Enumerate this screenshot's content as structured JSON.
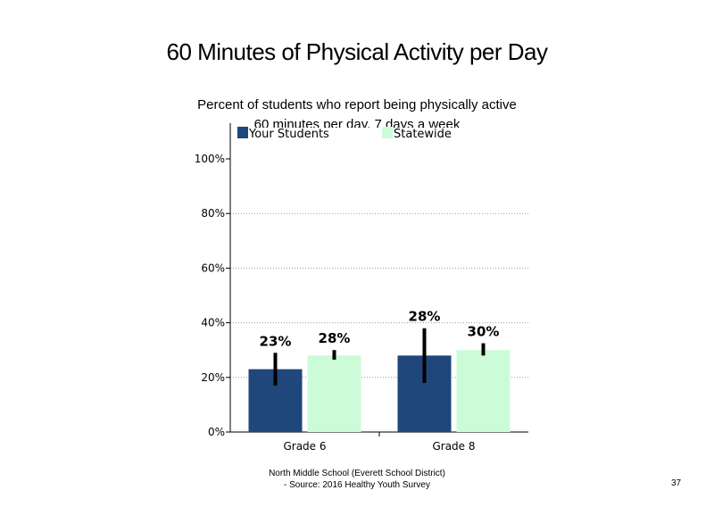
{
  "colors": {
    "your_students": "#1f477b",
    "statewide": "#ccfbd8",
    "error_bar": "#000000",
    "grid": "#999999"
  },
  "chart_data": {
    "type": "bar",
    "title": "60 Minutes of Physical Activity per Day",
    "subtitle_lines": [
      "Percent of students  who report being physically active",
      "60 minutes  per day, 7 days a week"
    ],
    "categories": [
      "Grade 6",
      "Grade 8"
    ],
    "series": [
      {
        "name": "Your Students",
        "values": [
          23,
          28
        ],
        "labels": [
          "23%",
          "28%"
        ],
        "error_low": [
          17,
          18
        ],
        "error_high": [
          29,
          38
        ]
      },
      {
        "name": "Statewide",
        "values": [
          28,
          30
        ],
        "labels": [
          "28%",
          "30%"
        ],
        "error_low": [
          26.5,
          28
        ],
        "error_high": [
          30,
          32.5
        ]
      }
    ],
    "ylim": [
      0,
      100
    ],
    "yticks": [
      0,
      20,
      40,
      60,
      80,
      100
    ],
    "ytick_labels": [
      "0%",
      "20%",
      "40%",
      "60%",
      "80%",
      "100%"
    ],
    "grid": "horizontal dotted",
    "legend": "top"
  },
  "footer": {
    "line1": "North  Middle  School  (Everett  School District)",
    "line2": "- Source: 2016 Healthy  Youth Survey",
    "page_number": "37"
  }
}
